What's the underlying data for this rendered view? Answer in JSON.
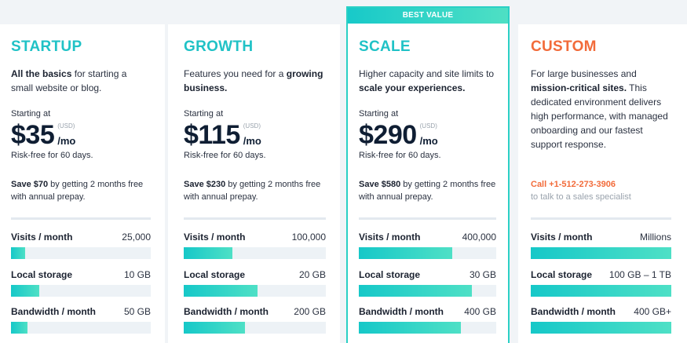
{
  "plans": [
    {
      "id": "startup",
      "name": "STARTUP",
      "desc_bold": "All the basics",
      "desc_rest": " for starting a small website or blog.",
      "starting": "Starting at",
      "price": "$35",
      "currency": "(USD)",
      "per": "/mo",
      "risk": "Risk-free for 60 days.",
      "save_bold": "Save $70",
      "save_rest": " by getting 2 months free with annual prepay.",
      "metrics": [
        {
          "label": "Visits / month",
          "value": "25,000",
          "fill": 0.1
        },
        {
          "label": "Local storage",
          "value": "10 GB",
          "fill": 0.2
        },
        {
          "label": "Bandwidth / month",
          "value": "50 GB",
          "fill": 0.12
        }
      ]
    },
    {
      "id": "growth",
      "name": "GROWTH",
      "desc_pre": "Features you need for a ",
      "desc_bold": "growing business.",
      "starting": "Starting at",
      "price": "$115",
      "currency": "(USD)",
      "per": "/mo",
      "risk": "Risk-free for 60 days.",
      "save_bold": "Save $230",
      "save_rest": " by getting 2 months free with annual prepay.",
      "metrics": [
        {
          "label": "Visits / month",
          "value": "100,000",
          "fill": 0.34
        },
        {
          "label": "Local storage",
          "value": "20 GB",
          "fill": 0.52
        },
        {
          "label": "Bandwidth / month",
          "value": "200 GB",
          "fill": 0.43
        }
      ]
    },
    {
      "id": "scale",
      "ribbon": "BEST VALUE",
      "name": "SCALE",
      "desc_pre": "Higher capacity and site limits to ",
      "desc_bold": "scale your experiences.",
      "starting": "Starting at",
      "price": "$290",
      "currency": "(USD)",
      "per": "/mo",
      "risk": "Risk-free for 60 days.",
      "save_bold": "Save $580",
      "save_rest": " by getting 2 months free with annual prepay.",
      "metrics": [
        {
          "label": "Visits / month",
          "value": "400,000",
          "fill": 0.68
        },
        {
          "label": "Local storage",
          "value": "30 GB",
          "fill": 0.82
        },
        {
          "label": "Bandwidth / month",
          "value": "400 GB",
          "fill": 0.74
        }
      ]
    },
    {
      "id": "custom",
      "name": "CUSTOM",
      "desc_pre": "For large businesses and ",
      "desc_bold": "mission-critical sites.",
      "desc_rest": " This dedicated environment delivers high performance, with managed onboarding and our fastest support response.",
      "call_phone": "Call +1-512-273-3906",
      "call_sub": "to talk to a sales specialist",
      "metrics": [
        {
          "label": "Visits / month",
          "value": "Millions",
          "fill": 1.0
        },
        {
          "label": "Local storage",
          "value": "100 GB – 1 TB",
          "fill": 1.0
        },
        {
          "label": "Bandwidth / month",
          "value": "400 GB+",
          "fill": 1.0
        }
      ]
    }
  ],
  "colors": {
    "teal": "#20c2c6",
    "orange": "#f26b3a",
    "bar_start": "#16c8c8",
    "bar_end": "#4ee0c6"
  }
}
